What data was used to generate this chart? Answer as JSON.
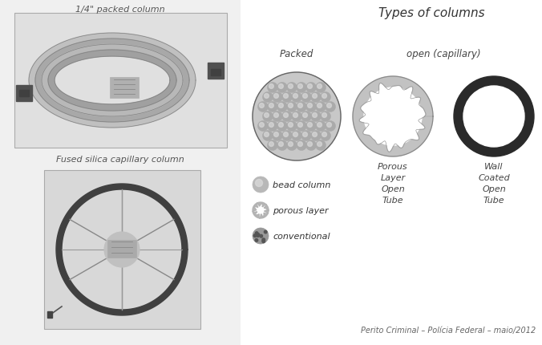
{
  "bg_color": "#f0f0f0",
  "white": "#ffffff",
  "title_types": "Types of columns",
  "label_packed": "Packed",
  "label_open": "open (capillary)",
  "label_porous_layer_open": "Porous\nLayer\nOpen\nTube",
  "label_wall_coated": "Wall\nCoated\nOpen\nTube",
  "legend_bead": "bead column",
  "legend_porous": "porous layer",
  "legend_conventional": "conventional",
  "caption": "Perito Criminal – Polícia Federal – maio/2012",
  "label_packed_col": "1/4\" packed column",
  "label_fused": "Fused silica capillary column",
  "title_font": 11,
  "label_font": 8,
  "caption_font": 7,
  "dark_gray": "#444444",
  "mid_gray": "#888888",
  "light_gray": "#cccccc",
  "photo_bg": "#d8d8d8",
  "photo_border": "#aaaaaa"
}
